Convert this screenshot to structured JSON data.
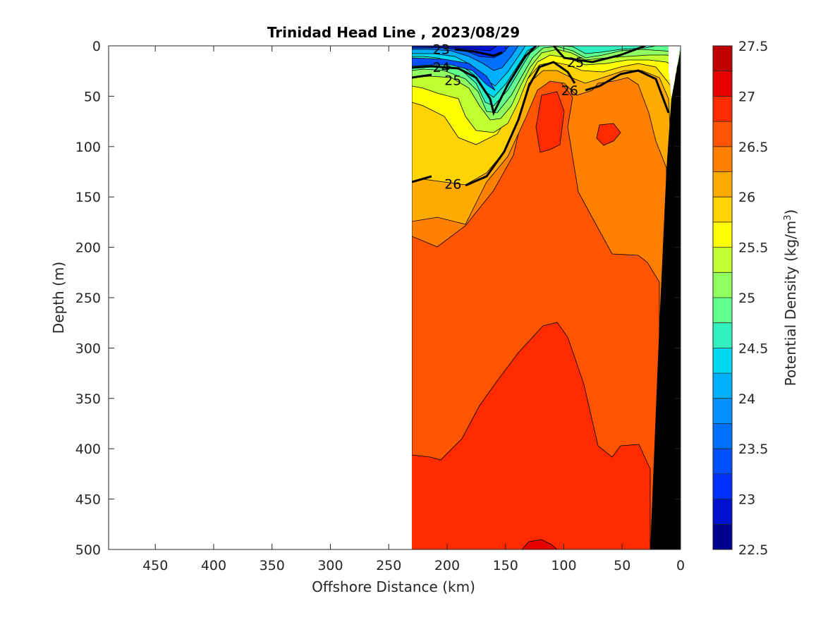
{
  "chart_data": {
    "type": "heatmap",
    "title": "Trinidad Head Line , 2023/08/29",
    "xlabel": "Offshore Distance (km)",
    "ylabel": "Depth (m)",
    "colorbar_label": "Potential Density (kg/m3)",
    "xlim": [
      490,
      0
    ],
    "ylim": [
      0,
      500
    ],
    "x_reversed": true,
    "y_reversed": true,
    "x_ticks": [
      "450",
      "400",
      "350",
      "300",
      "250",
      "200",
      "150",
      "100",
      "50",
      "0"
    ],
    "y_ticks": [
      "0",
      "50",
      "100",
      "150",
      "200",
      "250",
      "300",
      "350",
      "400",
      "450",
      "500"
    ],
    "colorbar_ticks": [
      "27.5",
      "27",
      "26.5",
      "26",
      "25.5",
      "25",
      "24.5",
      "24",
      "23.5",
      "23",
      "22.5"
    ],
    "colorbar_range": [
      22.5,
      27.5
    ],
    "data_extent_km": [
      230,
      0
    ],
    "contour_labels": [
      {
        "text": "23",
        "x": 205,
        "y": 3
      },
      {
        "text": "24",
        "x": 205,
        "y": 21
      },
      {
        "text": "25",
        "x": 195,
        "y": 34
      },
      {
        "text": "25",
        "x": 90,
        "y": 16
      },
      {
        "text": "26",
        "x": 95,
        "y": 44
      },
      {
        "text": "26",
        "x": 195,
        "y": 137
      }
    ],
    "colormap": [
      "#00008f",
      "#0010cf",
      "#0030ff",
      "#0050ff",
      "#0070ff",
      "#0090ff",
      "#00b0ff",
      "#00d8f0",
      "#30f0c0",
      "#60ff90",
      "#90ff60",
      "#c0ff30",
      "#ffff00",
      "#ffd400",
      "#ffaa00",
      "#ff7f00",
      "#ff5400",
      "#ff2a00",
      "#e80000",
      "#c00000"
    ],
    "land_color": "#000000"
  }
}
